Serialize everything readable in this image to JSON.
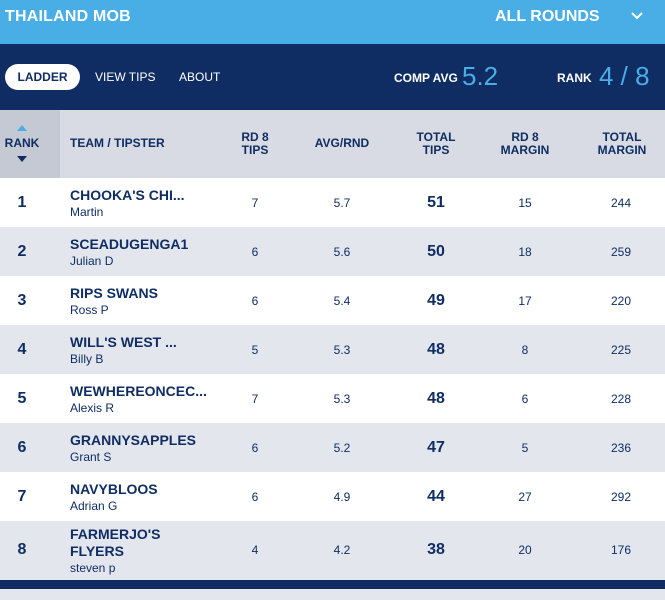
{
  "header": {
    "competition": "THAILAND MOB",
    "round_select": "ALL ROUNDS"
  },
  "nav": {
    "tabs": [
      "LADDER",
      "VIEW TIPS",
      "ABOUT"
    ],
    "active_tab": "LADDER",
    "comp_avg_label": "COMP AVG",
    "comp_avg_value": "5.2",
    "rank_label": "RANK",
    "rank_value": "4 / 8"
  },
  "table": {
    "columns": {
      "rank": "RANK",
      "team": "TEAM / TIPSTER",
      "rd_tips_1": "RD 8",
      "rd_tips_2": "TIPS",
      "avg": "AVG/RND",
      "total_tips_1": "TOTAL",
      "total_tips_2": "TIPS",
      "rd_margin_1": "RD 8",
      "rd_margin_2": "MARGIN",
      "total_margin_1": "TOTAL",
      "total_margin_2": "MARGIN"
    },
    "rows": [
      {
        "rank": "1",
        "team": "CHOOKA'S CHI...",
        "tipster": "Martin",
        "rd_tips": "7",
        "avg": "5.7",
        "total_tips": "51",
        "rd_margin": "15",
        "total_margin": "244"
      },
      {
        "rank": "2",
        "team": "SCEADUGENGA1",
        "tipster": "Julian D",
        "rd_tips": "6",
        "avg": "5.6",
        "total_tips": "50",
        "rd_margin": "18",
        "total_margin": "259"
      },
      {
        "rank": "3",
        "team": "RIPS SWANS",
        "tipster": "Ross P",
        "rd_tips": "6",
        "avg": "5.4",
        "total_tips": "49",
        "rd_margin": "17",
        "total_margin": "220"
      },
      {
        "rank": "4",
        "team": "WILL'S WEST ...",
        "tipster": "Billy B",
        "rd_tips": "5",
        "avg": "5.3",
        "total_tips": "48",
        "rd_margin": "8",
        "total_margin": "225"
      },
      {
        "rank": "5",
        "team": "WEWHEREONCEC...",
        "tipster": "Alexis R",
        "rd_tips": "7",
        "avg": "5.3",
        "total_tips": "48",
        "rd_margin": "6",
        "total_margin": "228"
      },
      {
        "rank": "6",
        "team": "GRANNYSAPPLES",
        "tipster": "Grant S",
        "rd_tips": "6",
        "avg": "5.2",
        "total_tips": "47",
        "rd_margin": "5",
        "total_margin": "236"
      },
      {
        "rank": "7",
        "team": "NAVYBLOOS",
        "tipster": "Adrian G",
        "rd_tips": "6",
        "avg": "4.9",
        "total_tips": "44",
        "rd_margin": "27",
        "total_margin": "292"
      },
      {
        "rank": "8",
        "team": "FARMERJO'S FLYERS",
        "tipster": "steven p",
        "rd_tips": "4",
        "avg": "4.2",
        "total_tips": "38",
        "rd_margin": "20",
        "total_margin": "176"
      }
    ]
  },
  "colors": {
    "topbar": "#49ade6",
    "navy": "#0f2d63",
    "accent": "#49ade6",
    "row_alt": "#e4e6ee"
  }
}
